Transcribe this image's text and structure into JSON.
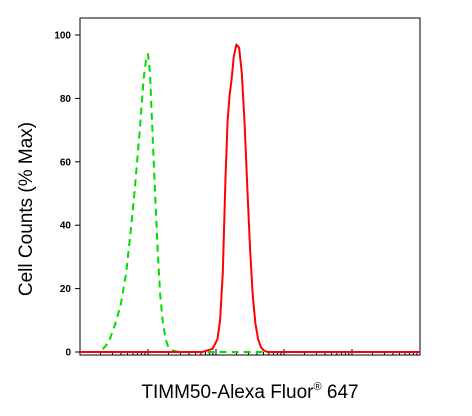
{
  "chart_data": {
    "type": "line",
    "xlabel": "TIMM50-Alexa Fluor",
    "xlabel_superscript": "®",
    "xlabel_suffix": " 647",
    "ylabel": "Cell Counts (% Max)",
    "ylim": [
      0,
      100
    ],
    "yticks": [
      "0",
      "20",
      "40",
      "60",
      "80",
      "100"
    ],
    "xscale": "log",
    "xlim_decades": [
      0,
      5
    ],
    "grid": false,
    "legend": "none",
    "series": [
      {
        "color": "#00dd00",
        "style": "dashed",
        "x": [
          0.0,
          0.3,
          0.42,
          0.52,
          0.6,
          0.68,
          0.74,
          0.8,
          0.84,
          0.88,
          0.91,
          0.94,
          0.97,
          1.0,
          1.03,
          1.06,
          1.1,
          1.14,
          1.18,
          1.22,
          1.26,
          1.3,
          1.36,
          1.45,
          1.6,
          2.0,
          5.0
        ],
        "y": [
          0,
          0,
          3,
          9,
          15,
          25,
          37,
          50,
          60,
          70,
          79,
          87,
          92,
          94,
          88,
          72,
          52,
          33,
          18,
          9,
          4,
          1.5,
          0.5,
          0,
          0,
          0,
          0
        ]
      },
      {
        "color": "#ff0000",
        "style": "solid",
        "x": [
          0.0,
          1.8,
          1.95,
          2.02,
          2.06,
          2.1,
          2.14,
          2.17,
          2.2,
          2.23,
          2.26,
          2.3,
          2.34,
          2.38,
          2.42,
          2.46,
          2.5,
          2.54,
          2.58,
          2.62,
          2.66,
          2.7,
          2.76,
          2.85,
          3.0,
          5.0
        ],
        "y": [
          0,
          0,
          1,
          4,
          10,
          25,
          55,
          73,
          81,
          86,
          93,
          97,
          96,
          88,
          72,
          52,
          33,
          18,
          9,
          4,
          1.5,
          0.5,
          0,
          0,
          0,
          0
        ]
      }
    ]
  }
}
